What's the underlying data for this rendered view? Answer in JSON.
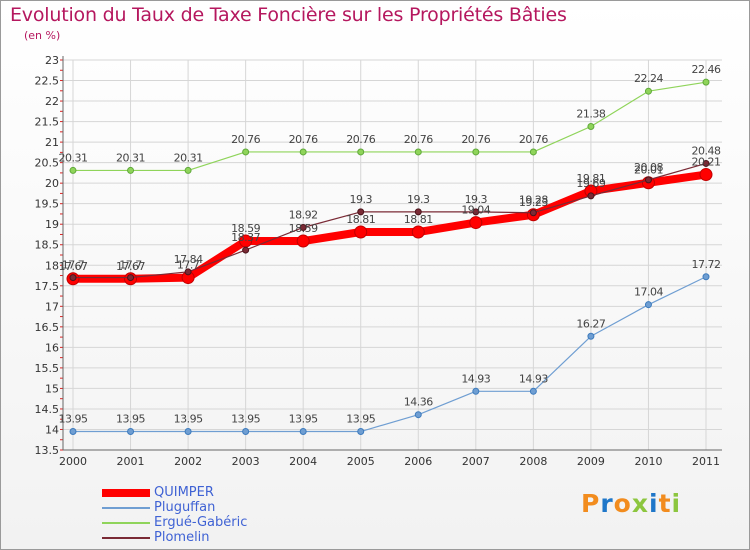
{
  "header": {
    "title": "Evolution du Taux de Taxe Foncière sur les Propriétés Bâties",
    "subtitle": "(en %)"
  },
  "logo": {
    "text": "Proxiti",
    "colors": [
      "#f28c1e",
      "#1f77c9",
      "#f28c1e",
      "#8cc63f",
      "#1f77c9",
      "#f28c1e",
      "#8cc63f"
    ]
  },
  "chart_data": {
    "type": "line",
    "title": "Evolution du Taux de Taxe Foncière sur les Propriétés Bâties",
    "ylabel": "(en %)",
    "xlabel": "",
    "categories": [
      "2000",
      "2001",
      "2002",
      "2003",
      "2004",
      "2005",
      "2006",
      "2007",
      "2008",
      "2009",
      "2010",
      "2011"
    ],
    "ylim": [
      13.5,
      23
    ],
    "yticks": [
      "13.5",
      "14",
      "14.5",
      "15",
      "15.5",
      "16",
      "16.5",
      "17",
      "17.5",
      "18",
      "18.5",
      "19",
      "19.5",
      "20",
      "20.5",
      "21",
      "21.5",
      "22",
      "22.5",
      "23"
    ],
    "grid": true,
    "legend_position": "bottom-left",
    "series": [
      {
        "name": "QUIMPER",
        "color": "#ff0000",
        "width": 8,
        "marker": 6,
        "values": [
          17.67,
          17.67,
          17.7,
          18.59,
          18.59,
          18.81,
          18.81,
          19.04,
          19.23,
          19.81,
          20.01,
          20.21
        ],
        "labels": [
          "17.67",
          "17.67",
          "17.7",
          "18.59",
          "18.59",
          "18.81",
          "18.81",
          "19.04",
          "19.23",
          "19.81",
          "20.01",
          "20.21"
        ]
      },
      {
        "name": "Pluguffan",
        "color": "#6f9ed2",
        "width": 1.2,
        "marker": 3,
        "values": [
          13.95,
          13.95,
          13.95,
          13.95,
          13.95,
          13.95,
          14.36,
          14.93,
          14.93,
          16.27,
          17.04,
          17.72
        ],
        "labels": [
          "13.95",
          "13.95",
          "13.95",
          "13.95",
          "13.95",
          "13.95",
          "14.36",
          "14.93",
          "14.93",
          "16.27",
          "17.04",
          "17.72"
        ]
      },
      {
        "name": "Ergué-Gabéric",
        "color": "#8fd45a",
        "width": 1.2,
        "marker": 3,
        "values": [
          20.31,
          20.31,
          20.31,
          20.76,
          20.76,
          20.76,
          20.76,
          20.76,
          20.76,
          21.38,
          22.24,
          22.46
        ],
        "labels": [
          "20.31",
          "20.31",
          "20.31",
          "20.76",
          "20.76",
          "20.76",
          "20.76",
          "20.76",
          "20.76",
          "21.38",
          "22.24",
          "22.46"
        ]
      },
      {
        "name": "Plomelin",
        "color": "#7a2a35",
        "width": 1.2,
        "marker": 3,
        "values": [
          17.7,
          17.7,
          17.84,
          18.37,
          18.92,
          19.3,
          19.3,
          19.3,
          19.28,
          19.69,
          20.08,
          20.48
        ],
        "labels": [
          "17.7",
          "17.7",
          "17.84",
          "18.37",
          "18.92",
          "19.3",
          "19.3",
          "19.3",
          "19.28",
          "19.69",
          "20.08",
          "20.48"
        ]
      }
    ]
  }
}
